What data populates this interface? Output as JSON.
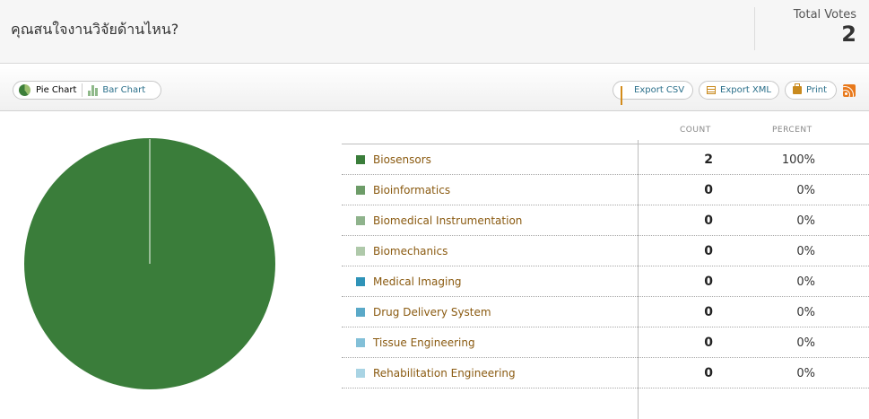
{
  "header": {
    "question": "คุณสนใจงานวิจัยด้านไหน?",
    "total_votes_label": "Total Votes",
    "total_votes": "2"
  },
  "toolbar": {
    "pie_chart_label": "Pie Chart",
    "bar_chart_label": "Bar Chart",
    "export_csv_label": "Export CSV",
    "export_xml_label": "Export XML",
    "print_label": "Print",
    "rss_icon": "rss-icon"
  },
  "table": {
    "count_header": "COUNT",
    "percent_header": "PERCENT"
  },
  "colors": {
    "Biosensors": "#3a7d3a",
    "Bioinformatics": "#6d9c68",
    "Biomedical Instrumentation": "#8fb38c",
    "Biomechanics": "#afc9aa",
    "Medical Imaging": "#2f93b8",
    "Drug Delivery System": "#5aa9c8",
    "Tissue Engineering": "#83c0d8",
    "Rehabilitation Engineering": "#a9d4e4"
  },
  "chart_data": {
    "type": "pie",
    "categories": [
      "Biosensors",
      "Bioinformatics",
      "Biomedical Instrumentation",
      "Biomechanics",
      "Medical Imaging",
      "Drug Delivery System",
      "Tissue Engineering",
      "Rehabilitation Engineering"
    ],
    "counts": [
      2,
      0,
      0,
      0,
      0,
      0,
      0,
      0
    ],
    "percents": [
      "100%",
      "0%",
      "0%",
      "0%",
      "0%",
      "0%",
      "0%",
      "0%"
    ]
  }
}
